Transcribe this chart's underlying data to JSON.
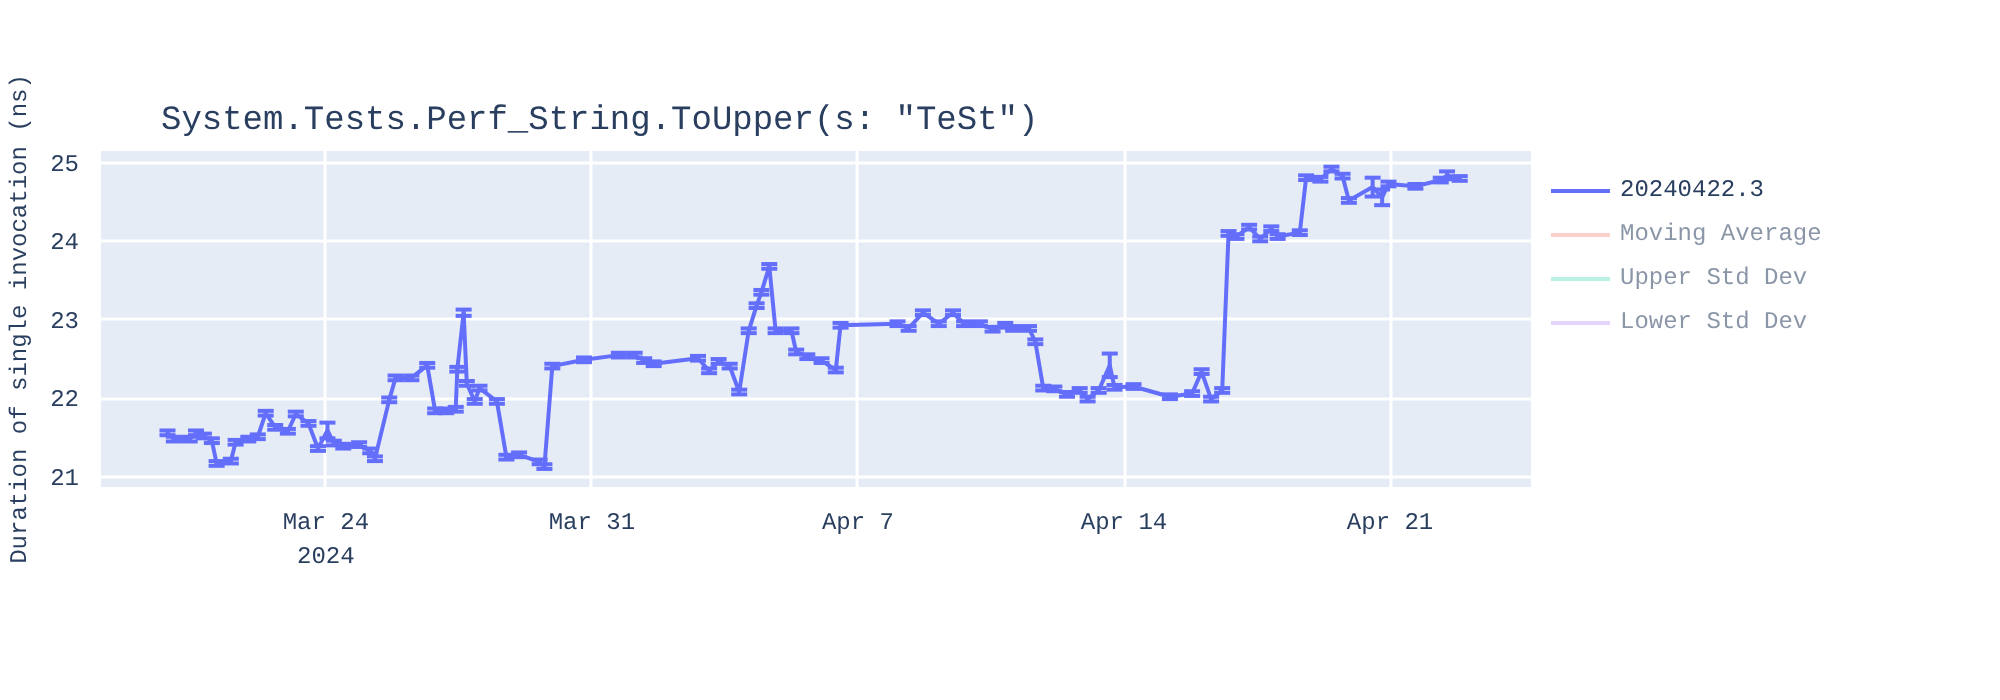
{
  "chart_data": {
    "type": "line",
    "title": "System.Tests.Perf_String.ToUpper(s: \"TeSt\")",
    "ylabel": "Duration of single invocation (ns)",
    "xlim": [
      "2024-03-18T02:00",
      "2024-04-24T17:00"
    ],
    "xticks": [
      {
        "value": "2024-03-24",
        "label": "Mar 24\n2024"
      },
      {
        "value": "2024-03-31",
        "label": "Mar 31"
      },
      {
        "value": "2024-04-07",
        "label": "Apr 7"
      },
      {
        "value": "2024-04-14",
        "label": "Apr 14"
      },
      {
        "value": "2024-04-21",
        "label": "Apr 21"
      }
    ],
    "ylim": [
      20.87,
      25.15
    ],
    "yticks": [
      21,
      22,
      23,
      24,
      25
    ],
    "grid": true,
    "legend": "top right",
    "marker": "none",
    "line_style": "solid",
    "series": [
      {
        "name": "20240422.3",
        "color": "#636efa",
        "x": [
          "2024-03-19T20:00",
          "2024-03-20T00:00",
          "2024-03-20T10:00",
          "2024-03-20T14:00",
          "2024-03-20T19:00",
          "2024-03-21T00:00",
          "2024-03-21T03:00",
          "2024-03-21T12:00",
          "2024-03-21T15:00",
          "2024-03-21T23:00",
          "2024-03-22T05:00",
          "2024-03-22T10:00",
          "2024-03-22T16:00",
          "2024-03-23T00:00",
          "2024-03-23T05:00",
          "2024-03-23T13:00",
          "2024-03-23T19:00",
          "2024-03-24T01:00",
          "2024-03-24T05:00",
          "2024-03-24T11:00",
          "2024-03-24T21:00",
          "2024-03-25T04:00",
          "2024-03-25T07:00",
          "2024-03-25T16:00",
          "2024-03-25T20:00",
          "2024-03-26T06:00",
          "2024-03-26T16:00",
          "2024-03-26T21:00",
          "2024-03-27T04:00",
          "2024-03-27T10:00",
          "2024-03-27T11:00",
          "2024-03-27T15:00",
          "2024-03-27T17:00",
          "2024-03-27T22:00",
          "2024-03-28T01:00",
          "2024-03-28T12:00",
          "2024-03-28T18:00",
          "2024-03-29T02:00",
          "2024-03-29T15:00",
          "2024-03-29T18:00",
          "2024-03-29T23:00",
          "2024-03-30T19:00",
          "2024-03-31T17:00",
          "2024-04-01T03:00",
          "2024-04-01T09:00",
          "2024-04-01T15:00",
          "2024-04-02T19:00",
          "2024-04-03T02:00",
          "2024-04-03T08:00",
          "2024-04-03T15:00",
          "2024-04-03T21:00",
          "2024-04-04T03:00",
          "2024-04-04T08:00",
          "2024-04-04T11:00",
          "2024-04-04T16:00",
          "2024-04-04T20:00",
          "2024-04-05T06:00",
          "2024-04-05T09:00",
          "2024-04-05T16:00",
          "2024-04-06T01:00",
          "2024-04-06T10:00",
          "2024-04-06T13:00",
          "2024-04-08T01:00",
          "2024-04-08T08:00",
          "2024-04-08T17:00",
          "2024-04-09T03:00",
          "2024-04-09T12:00",
          "2024-04-09T19:00",
          "2024-04-10T05:00",
          "2024-04-10T13:00",
          "2024-04-10T21:00",
          "2024-04-11T02:00",
          "2024-04-11T12:00",
          "2024-04-11T16:00",
          "2024-04-11T21:00",
          "2024-04-12T04:00",
          "2024-04-12T12:00",
          "2024-04-12T20:00",
          "2024-04-13T01:00",
          "2024-04-13T08:00",
          "2024-04-13T15:00",
          "2024-04-13T18:00",
          "2024-04-14T06:00",
          "2024-04-15T05:00",
          "2024-04-15T19:00",
          "2024-04-16T01:00",
          "2024-04-16T07:00",
          "2024-04-16T14:00",
          "2024-04-16T18:00",
          "2024-04-16T23:00",
          "2024-04-17T07:00",
          "2024-04-17T14:00",
          "2024-04-17T21:00",
          "2024-04-18T01:00",
          "2024-04-18T15:00",
          "2024-04-18T19:00",
          "2024-04-19T04:00",
          "2024-04-19T11:00",
          "2024-04-19T18:00",
          "2024-04-19T22:00",
          "2024-04-20T13:00",
          "2024-04-20T19:00",
          "2024-04-20T23:00",
          "2024-04-21T16:00",
          "2024-04-22T08:00",
          "2024-04-22T12:00",
          "2024-04-22T20:00"
        ],
        "values": [
          21.56,
          21.48,
          21.48,
          21.56,
          21.52,
          21.46,
          21.17,
          21.2,
          21.44,
          21.48,
          21.51,
          21.81,
          21.63,
          21.58,
          21.8,
          21.68,
          21.36,
          21.59,
          21.43,
          21.39,
          21.41,
          21.33,
          21.23,
          21.98,
          22.26,
          22.26,
          22.42,
          21.84,
          21.84,
          21.86,
          22.37,
          23.09,
          22.19,
          21.96,
          22.13,
          21.96,
          21.25,
          21.28,
          21.19,
          21.13,
          22.41,
          22.49,
          22.55,
          22.55,
          22.48,
          22.44,
          22.51,
          22.35,
          22.47,
          22.41,
          22.08,
          22.86,
          23.18,
          23.35,
          23.68,
          22.86,
          22.86,
          22.59,
          22.53,
          22.48,
          22.36,
          22.93,
          22.95,
          22.89,
          23.09,
          22.95,
          23.09,
          22.95,
          22.95,
          22.88,
          22.93,
          22.89,
          22.89,
          22.72,
          22.13,
          22.12,
          22.05,
          22.1,
          21.99,
          22.1,
          22.42,
          22.14,
          22.15,
          22.02,
          22.06,
          22.34,
          21.99,
          22.1,
          24.1,
          24.06,
          24.18,
          24.03,
          24.16,
          24.06,
          24.11,
          24.81,
          24.79,
          24.92,
          24.83,
          24.52,
          24.69,
          24.56,
          24.73,
          24.7,
          24.78,
          24.84,
          24.8
        ],
        "errors": [
          0.03,
          0.03,
          0.03,
          0.03,
          0.03,
          0.03,
          0.03,
          0.03,
          0.03,
          0.03,
          0.03,
          0.03,
          0.03,
          0.03,
          0.03,
          0.03,
          0.03,
          0.1,
          0.03,
          0.03,
          0.03,
          0.03,
          0.03,
          0.03,
          0.03,
          0.03,
          0.03,
          0.03,
          0.03,
          0.03,
          0.03,
          0.04,
          0.03,
          0.03,
          0.03,
          0.03,
          0.03,
          0.03,
          0.03,
          0.03,
          0.03,
          0.03,
          0.03,
          0.03,
          0.03,
          0.03,
          0.03,
          0.03,
          0.03,
          0.03,
          0.03,
          0.03,
          0.03,
          0.03,
          0.03,
          0.03,
          0.03,
          0.03,
          0.03,
          0.03,
          0.03,
          0.03,
          0.03,
          0.03,
          0.03,
          0.03,
          0.03,
          0.03,
          0.03,
          0.03,
          0.03,
          0.03,
          0.03,
          0.03,
          0.03,
          0.03,
          0.03,
          0.03,
          0.03,
          0.03,
          0.15,
          0.03,
          0.03,
          0.03,
          0.03,
          0.03,
          0.03,
          0.03,
          0.03,
          0.03,
          0.03,
          0.03,
          0.03,
          0.03,
          0.03,
          0.03,
          0.03,
          0.03,
          0.03,
          0.03,
          0.12,
          0.1,
          0.03,
          0.03,
          0.03,
          0.05,
          0.03
        ]
      },
      {
        "name": "Moving Average",
        "color": "#f7aa9c"
      },
      {
        "name": "Upper Std Dev",
        "color": "#80e5ca"
      },
      {
        "name": "Lower Std Dev",
        "color": "#d4b1fc"
      }
    ]
  }
}
